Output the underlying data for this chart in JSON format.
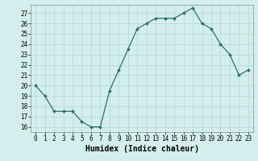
{
  "x": [
    0,
    1,
    2,
    3,
    4,
    5,
    6,
    7,
    8,
    9,
    10,
    11,
    12,
    13,
    14,
    15,
    16,
    17,
    18,
    19,
    20,
    21,
    22,
    23
  ],
  "y": [
    20,
    19,
    17.5,
    17.5,
    17.5,
    16.5,
    16,
    16,
    19.5,
    21.5,
    23.5,
    25.5,
    26,
    26.5,
    26.5,
    26.5,
    27,
    27.5,
    26,
    25.5,
    24,
    23,
    21,
    21.5
  ],
  "xlabel": "Humidex (Indice chaleur)",
  "yticks": [
    16,
    17,
    18,
    19,
    20,
    21,
    22,
    23,
    24,
    25,
    26,
    27
  ],
  "xticks": [
    0,
    1,
    2,
    3,
    4,
    5,
    6,
    7,
    8,
    9,
    10,
    11,
    12,
    13,
    14,
    15,
    16,
    17,
    18,
    19,
    20,
    21,
    22,
    23
  ],
  "line_color": "#2d6e63",
  "bg_color": "#d4eeee",
  "grid_color": "#aed8d0",
  "tick_fontsize": 5.5,
  "xlabel_fontsize": 7.0,
  "marker_size": 2.0,
  "linewidth": 0.9
}
